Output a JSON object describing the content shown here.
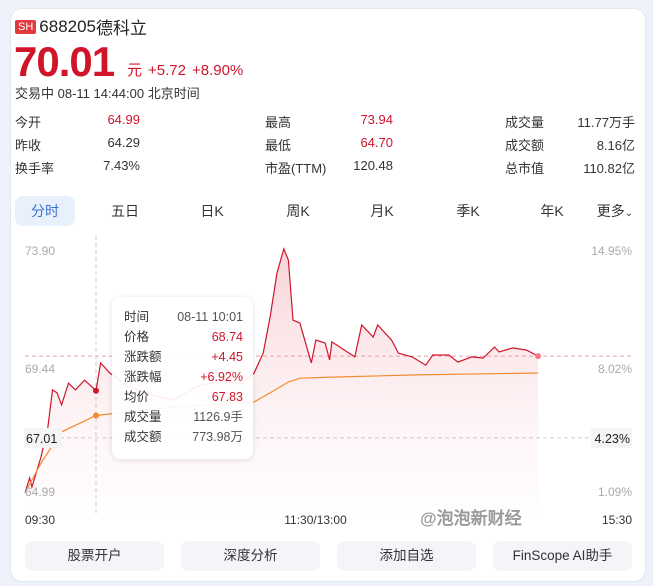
{
  "stock": {
    "exchange": "SH",
    "code": "688205",
    "name": "德科立",
    "price": "70.01",
    "unit": "元",
    "change": "+5.72",
    "change_pct": "+8.90%",
    "status": "交易中 08-11 14:44:00 北京时间"
  },
  "stats": [
    {
      "label": "今开",
      "value": "64.99",
      "red": true
    },
    {
      "label": "最高",
      "value": "73.94",
      "red": true
    },
    {
      "label": "成交量",
      "value": "11.77万手",
      "red": false
    },
    {
      "label": "昨收",
      "value": "64.29",
      "red": false
    },
    {
      "label": "最低",
      "value": "64.70",
      "red": true
    },
    {
      "label": "成交额",
      "value": "8.16亿",
      "red": false
    },
    {
      "label": "换手率",
      "value": "7.43%",
      "red": false
    },
    {
      "label": "市盈(TTM)",
      "value": "120.48",
      "red": false
    },
    {
      "label": "总市值",
      "value": "110.82亿",
      "red": false
    }
  ],
  "tabs": [
    "分时",
    "五日",
    "日K",
    "周K",
    "月K",
    "季K",
    "年K",
    "更多"
  ],
  "active_tab": "分时",
  "tooltip": [
    {
      "label": "时间",
      "value": "08-11 10:01",
      "red": false
    },
    {
      "label": "价格",
      "value": "68.74",
      "red": true
    },
    {
      "label": "涨跌额",
      "value": "+4.45",
      "red": true
    },
    {
      "label": "涨跌幅",
      "value": "+6.92%",
      "red": true
    },
    {
      "label": "均价",
      "value": "67.83",
      "red": true
    },
    {
      "label": "成交量",
      "value": "1126.9手",
      "red": false
    },
    {
      "label": "成交额",
      "value": "773.98万",
      "red": false
    }
  ],
  "buttons": [
    "股票开户",
    "深度分析",
    "添加自选",
    "FinScope AI助手"
  ],
  "watermark": "@泡泡新财经",
  "colors": {
    "up": "#d0142a",
    "avg": "#f08c2e",
    "accent": "#3b6fd4"
  },
  "chart_data": {
    "type": "line",
    "ylim": [
      64.99,
      73.9
    ],
    "y_ticks_left": [
      "73.90",
      "69.44",
      "64.99"
    ],
    "y_ticks_right": [
      "14.95%",
      "8.02%",
      "1.09%"
    ],
    "x_ticks": [
      "09:30",
      "11:30/13:00",
      "15:30"
    ],
    "ref_lines": [
      {
        "price": 70.01,
        "label": null
      },
      {
        "price": 67.01,
        "label": "67.01",
        "pct": "4.23%"
      }
    ],
    "crosshair_time": "10:01",
    "series": [
      {
        "key": "price",
        "points": [
          [
            "09:30",
            64.99
          ],
          [
            "09:32",
            65.54
          ],
          [
            "09:33",
            65.21
          ],
          [
            "09:37",
            66.31
          ],
          [
            "09:40",
            67.41
          ],
          [
            "09:42",
            68.77
          ],
          [
            "09:44",
            68.66
          ],
          [
            "09:46",
            68.22
          ],
          [
            "09:49",
            69.02
          ],
          [
            "09:52",
            68.77
          ],
          [
            "09:56",
            69.13
          ],
          [
            "10:01",
            68.74
          ],
          [
            "10:03",
            69.76
          ],
          [
            "10:07",
            69.39
          ],
          [
            "10:15",
            68.9
          ],
          [
            "10:25",
            68.6
          ],
          [
            "10:35",
            68.4
          ],
          [
            "10:45",
            68.9
          ],
          [
            "10:55",
            69.1
          ],
          [
            "11:05",
            69.0
          ],
          [
            "11:10",
            69.39
          ],
          [
            "11:14",
            70.12
          ],
          [
            "11:17",
            71.44
          ],
          [
            "11:20",
            73.06
          ],
          [
            "11:23",
            73.94
          ],
          [
            "11:25",
            73.53
          ],
          [
            "11:27",
            71.33
          ],
          [
            "11:30",
            71.22
          ],
          [
            "13:05",
            69.76
          ],
          [
            "13:07",
            70.6
          ],
          [
            "13:11",
            70.49
          ],
          [
            "13:13",
            69.87
          ],
          [
            "13:14",
            70.53
          ],
          [
            "13:24",
            69.98
          ],
          [
            "13:27",
            71.15
          ],
          [
            "13:32",
            70.71
          ],
          [
            "13:34",
            71.15
          ],
          [
            "13:40",
            70.6
          ],
          [
            "13:43",
            70.12
          ],
          [
            "13:49",
            69.98
          ],
          [
            "13:55",
            69.68
          ],
          [
            "13:58",
            70.05
          ],
          [
            "14:05",
            70.05
          ],
          [
            "14:09",
            69.79
          ],
          [
            "14:15",
            69.98
          ],
          [
            "14:20",
            69.94
          ],
          [
            "14:25",
            70.34
          ],
          [
            "14:27",
            70.16
          ],
          [
            "14:33",
            70.31
          ],
          [
            "14:39",
            70.23
          ],
          [
            "14:44",
            70.01
          ]
        ]
      },
      {
        "key": "avg",
        "points": [
          [
            "09:30",
            64.99
          ],
          [
            "09:37",
            66.09
          ],
          [
            "09:46",
            67.23
          ],
          [
            "10:01",
            67.83
          ],
          [
            "10:30",
            68.1
          ],
          [
            "11:10",
            68.33
          ],
          [
            "11:17",
            68.66
          ],
          [
            "11:25",
            69.06
          ],
          [
            "11:30",
            69.2
          ],
          [
            "13:14",
            69.24
          ],
          [
            "13:51",
            69.32
          ],
          [
            "14:44",
            69.39
          ]
        ]
      }
    ]
  }
}
